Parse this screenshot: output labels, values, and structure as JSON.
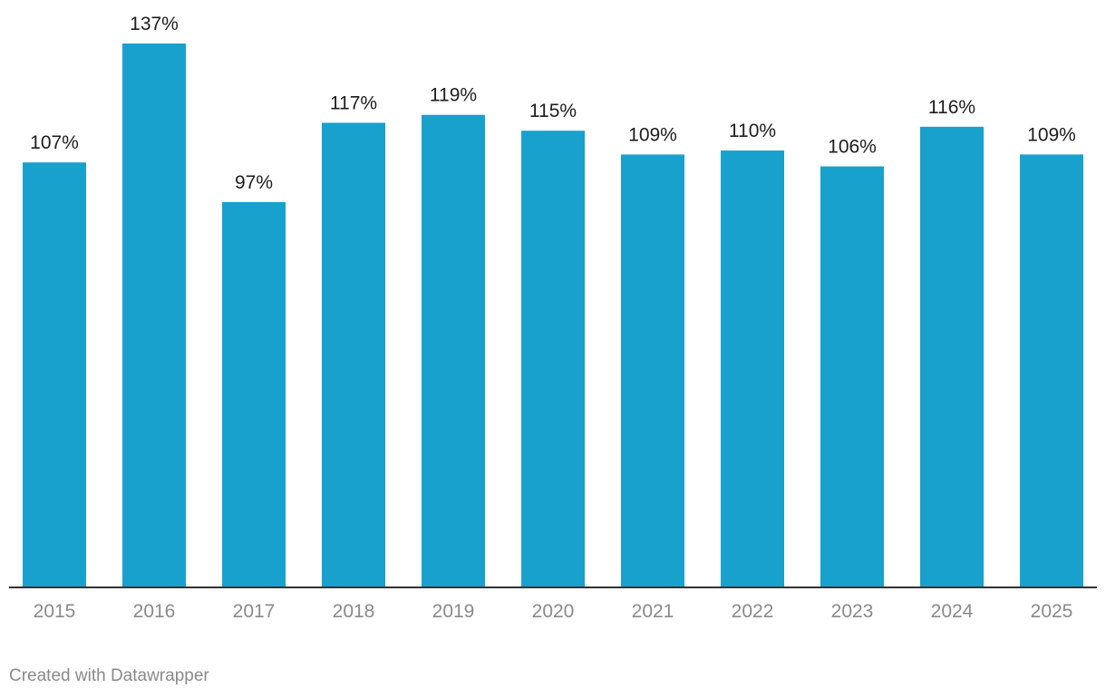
{
  "chart_data": {
    "type": "bar",
    "title": "",
    "xlabel": "",
    "ylabel": "",
    "categories": [
      "2015",
      "2016",
      "2017",
      "2018",
      "2019",
      "2020",
      "2021",
      "2022",
      "2023",
      "2024",
      "2025"
    ],
    "values": [
      107,
      137,
      97,
      117,
      119,
      115,
      109,
      110,
      106,
      116,
      109
    ],
    "value_labels": [
      "107%",
      "137%",
      "97%",
      "117%",
      "119%",
      "115%",
      "109%",
      "110%",
      "106%",
      "116%",
      "109%"
    ],
    "ylim": [
      0,
      137
    ],
    "unit": "%",
    "grid": false,
    "bar_color": "#18a1cd",
    "baseline_color": "#333333"
  },
  "footer": {
    "credit": "Created with Datawrapper"
  }
}
